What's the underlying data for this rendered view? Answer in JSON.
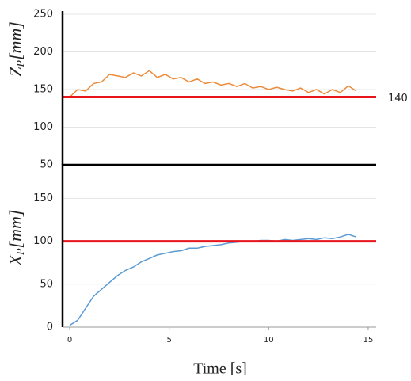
{
  "chart_data": [
    {
      "type": "line",
      "ylabel": {
        "symbol": "Z",
        "subscript": "P",
        "unit": "[mm]"
      },
      "x": [
        0,
        0.4,
        0.8,
        1.2,
        1.6,
        2.0,
        2.4,
        2.8,
        3.2,
        3.6,
        4.0,
        4.4,
        4.8,
        5.2,
        5.6,
        6.0,
        6.4,
        6.8,
        7.2,
        7.6,
        8.0,
        8.4,
        8.8,
        9.2,
        9.6,
        10.0,
        10.4,
        10.8,
        11.2,
        11.6,
        12.0,
        12.4,
        12.8,
        13.2,
        13.6,
        14.0,
        14.4
      ],
      "series": [
        {
          "color": "#ed8b3a",
          "values": [
            140,
            150,
            148,
            158,
            160,
            170,
            168,
            166,
            172,
            168,
            175,
            166,
            170,
            164,
            166,
            160,
            164,
            158,
            160,
            156,
            158,
            154,
            158,
            152,
            154,
            150,
            153,
            150,
            148,
            152,
            146,
            150,
            144,
            150,
            146,
            155,
            148
          ]
        }
      ],
      "xlim": [
        -0.36,
        15.4
      ],
      "ylim": [
        50,
        250
      ],
      "yticks": [
        50,
        100,
        150,
        200,
        250
      ],
      "grid": true,
      "reference_line": 140,
      "reference_color": "#e8141c",
      "show_reference_label": true
    },
    {
      "type": "line",
      "ylabel": {
        "symbol": "X",
        "subscript": "P",
        "unit": "[mm]"
      },
      "xlabel": "Time [s]",
      "x": [
        0,
        0.4,
        0.8,
        1.2,
        1.6,
        2.0,
        2.4,
        2.8,
        3.2,
        3.6,
        4.0,
        4.4,
        4.8,
        5.2,
        5.6,
        6.0,
        6.4,
        6.8,
        7.2,
        7.6,
        8.0,
        8.4,
        8.8,
        9.2,
        9.6,
        10.0,
        10.4,
        10.8,
        11.2,
        11.6,
        12.0,
        12.4,
        12.8,
        13.2,
        13.6,
        14.0,
        14.4
      ],
      "series": [
        {
          "color": "#5b9bd5",
          "values": [
            2,
            8,
            22,
            36,
            44,
            52,
            60,
            66,
            70,
            76,
            80,
            84,
            86,
            88,
            89,
            92,
            92,
            94,
            95,
            96,
            98,
            99,
            100,
            100,
            101,
            101,
            100,
            102,
            101,
            102,
            103,
            102,
            104,
            103,
            105,
            108,
            105
          ]
        }
      ],
      "xlim": [
        -0.36,
        15.4
      ],
      "xticks": [
        0,
        5,
        10,
        15
      ],
      "ylim": [
        0,
        190
      ],
      "yticks": [
        0,
        50,
        100,
        150
      ],
      "grid": true,
      "reference_line": 100,
      "reference_color": "#e8141c",
      "show_reference_label": false
    }
  ]
}
